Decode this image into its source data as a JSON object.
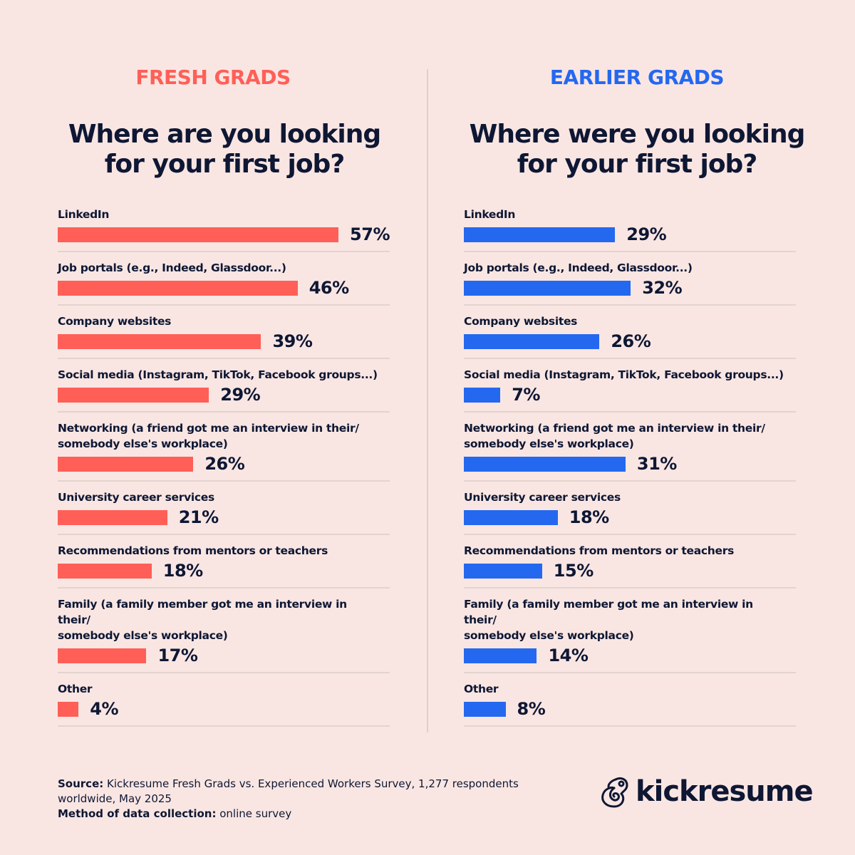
{
  "colors": {
    "fresh": "#ff5f57",
    "earlier": "#2468f0",
    "text": "#0e1733",
    "background": "#f9e6e3"
  },
  "chart_data": [
    {
      "type": "bar",
      "orientation": "horizontal",
      "group_label": "FRESH GRADS",
      "title": "Where are you looking for your first job?",
      "categories": [
        "LinkedIn",
        "Job portals (e.g., Indeed, Glassdoor...)",
        "Company websites",
        "Social media (Instagram, TikTok, Facebook groups...)",
        "Networking (a friend got me an interview in their/ somebody else's workplace)",
        "University career services",
        "Recommendations from mentors or teachers",
        "Family (a family member got me an interview in their/ somebody else's workplace)",
        "Other"
      ],
      "values": [
        57,
        46,
        39,
        29,
        26,
        21,
        18,
        17,
        4
      ],
      "value_labels": [
        "57%",
        "46%",
        "39%",
        "29%",
        "26%",
        "21%",
        "18%",
        "17%",
        "4%"
      ],
      "xlim": [
        0,
        100
      ]
    },
    {
      "type": "bar",
      "orientation": "horizontal",
      "group_label": "EARLIER GRADS",
      "title": "Where were you looking for your first job?",
      "categories": [
        "LinkedIn",
        "Job portals (e.g., Indeed, Glassdoor...)",
        "Company websites",
        "Social media (Instagram, TikTok, Facebook groups...)",
        "Networking (a friend got me an interview in their/ somebody else's workplace)",
        "University career services",
        "Recommendations from mentors or teachers",
        "Family (a family member got me an interview in their/ somebody else's workplace)",
        "Other"
      ],
      "values": [
        29,
        32,
        26,
        7,
        31,
        18,
        15,
        14,
        8
      ],
      "value_labels": [
        "29%",
        "32%",
        "26%",
        "7%",
        "31%",
        "18%",
        "15%",
        "14%",
        "8%"
      ],
      "xlim": [
        0,
        100
      ]
    }
  ],
  "footer": {
    "source_label": "Source:",
    "source_text": " Kickresume Fresh Grads vs. Experienced Workers Survey, 1,277 respondents worldwide, May 2025",
    "method_label": "Method of data collection:",
    "method_text": " online survey"
  },
  "logo": {
    "text": "kickresume",
    "icon": "chameleon-logo-icon"
  }
}
